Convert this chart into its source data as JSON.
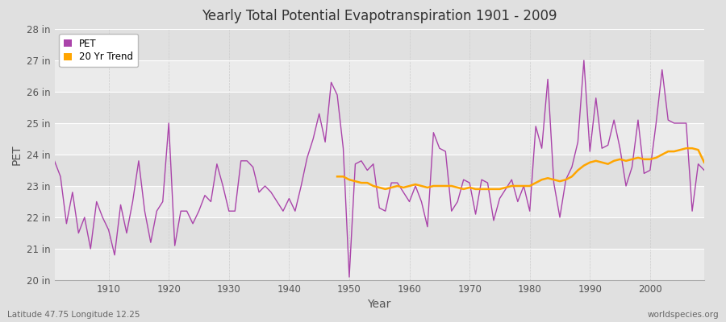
{
  "title": "Yearly Total Potential Evapotranspiration 1901 - 2009",
  "xlabel": "Year",
  "ylabel": "PET",
  "footnote_left": "Latitude 47.75 Longitude 12.25",
  "footnote_right": "worldspecies.org",
  "ylim": [
    20,
    28
  ],
  "ytick_labels": [
    "20 in",
    "21 in",
    "22 in",
    "23 in",
    "24 in",
    "25 in",
    "26 in",
    "27 in",
    "28 in"
  ],
  "ytick_values": [
    20,
    21,
    22,
    23,
    24,
    25,
    26,
    27,
    28
  ],
  "pet_color": "#AA44AA",
  "trend_color": "#FFA500",
  "bg_color": "#E0E0E0",
  "plot_bg_color": "#EFEFEF",
  "stripe_color1": "#EBEBEB",
  "stripe_color2": "#E0E0E0",
  "years": [
    1901,
    1902,
    1903,
    1904,
    1905,
    1906,
    1907,
    1908,
    1909,
    1910,
    1911,
    1912,
    1913,
    1914,
    1915,
    1916,
    1917,
    1918,
    1919,
    1920,
    1921,
    1922,
    1923,
    1924,
    1925,
    1926,
    1927,
    1928,
    1929,
    1930,
    1931,
    1932,
    1933,
    1934,
    1935,
    1936,
    1937,
    1938,
    1939,
    1940,
    1941,
    1942,
    1943,
    1944,
    1945,
    1946,
    1947,
    1948,
    1949,
    1950,
    1951,
    1952,
    1953,
    1954,
    1955,
    1956,
    1957,
    1958,
    1959,
    1960,
    1961,
    1962,
    1963,
    1964,
    1965,
    1966,
    1967,
    1968,
    1969,
    1970,
    1971,
    1972,
    1973,
    1974,
    1975,
    1976,
    1977,
    1978,
    1979,
    1980,
    1981,
    1982,
    1983,
    1984,
    1985,
    1986,
    1987,
    1988,
    1989,
    1990,
    1991,
    1992,
    1993,
    1994,
    1995,
    1996,
    1997,
    1998,
    1999,
    2000,
    2001,
    2002,
    2003,
    2004,
    2005,
    2006,
    2007,
    2008,
    2009
  ],
  "pet_values": [
    23.8,
    23.3,
    21.8,
    22.8,
    21.5,
    22.0,
    21.0,
    22.5,
    22.0,
    21.6,
    20.8,
    22.4,
    21.5,
    22.5,
    23.8,
    22.2,
    21.2,
    22.2,
    22.5,
    25.0,
    21.1,
    22.2,
    22.2,
    21.8,
    22.2,
    22.7,
    22.5,
    23.7,
    23.0,
    22.2,
    22.2,
    23.8,
    23.8,
    23.6,
    22.8,
    23.0,
    22.8,
    22.5,
    22.2,
    22.6,
    22.2,
    23.0,
    23.9,
    24.5,
    25.3,
    24.4,
    26.3,
    25.9,
    24.2,
    20.1,
    23.7,
    23.8,
    23.5,
    23.7,
    22.3,
    22.2,
    23.1,
    23.1,
    22.8,
    22.5,
    23.0,
    22.5,
    21.7,
    24.7,
    24.2,
    24.1,
    22.2,
    22.5,
    23.2,
    23.1,
    22.1,
    23.2,
    23.1,
    21.9,
    22.6,
    22.9,
    23.2,
    22.5,
    23.0,
    22.2,
    24.9,
    24.2,
    26.4,
    23.1,
    22.0,
    23.2,
    23.6,
    24.4,
    27.0,
    24.1,
    25.8,
    24.2,
    24.3,
    25.1,
    24.2,
    23.0,
    23.6,
    25.1,
    23.4,
    23.5,
    25.0,
    26.7,
    25.1,
    25.0,
    25.0,
    25.0,
    22.2,
    23.7,
    23.5
  ],
  "trend_values_years": [
    1948,
    1949,
    1950,
    1951,
    1952,
    1953,
    1954,
    1955,
    1956,
    1957,
    1958,
    1959,
    1960,
    1961,
    1962,
    1963,
    1964,
    1965,
    1966,
    1967,
    1968,
    1969,
    1970,
    1971,
    1972,
    1973,
    1974,
    1975,
    1976,
    1977,
    1978,
    1979,
    1980,
    1981,
    1982,
    1983,
    1984,
    1985,
    1986,
    1987,
    1988,
    1989,
    1990,
    1991,
    1992,
    1993,
    1994,
    1995,
    1996,
    1997,
    1998,
    1999,
    2000,
    2001,
    2002,
    2003,
    2004,
    2005,
    2006,
    2007,
    2008,
    2009
  ],
  "trend_values": [
    23.3,
    23.3,
    23.2,
    23.15,
    23.1,
    23.1,
    23.0,
    22.95,
    22.9,
    22.95,
    23.0,
    22.95,
    23.0,
    23.05,
    23.0,
    22.95,
    23.0,
    23.0,
    23.0,
    23.0,
    22.95,
    22.9,
    22.95,
    22.9,
    22.9,
    22.9,
    22.9,
    22.9,
    22.95,
    23.0,
    23.0,
    23.0,
    23.0,
    23.1,
    23.2,
    23.25,
    23.2,
    23.15,
    23.2,
    23.3,
    23.5,
    23.65,
    23.75,
    23.8,
    23.75,
    23.7,
    23.8,
    23.85,
    23.8,
    23.85,
    23.9,
    23.85,
    23.85,
    23.9,
    24.0,
    24.1,
    24.1,
    24.15,
    24.2,
    24.2,
    24.15,
    23.75
  ],
  "xticks": [
    1910,
    1920,
    1930,
    1940,
    1950,
    1960,
    1970,
    1980,
    1990,
    2000
  ]
}
